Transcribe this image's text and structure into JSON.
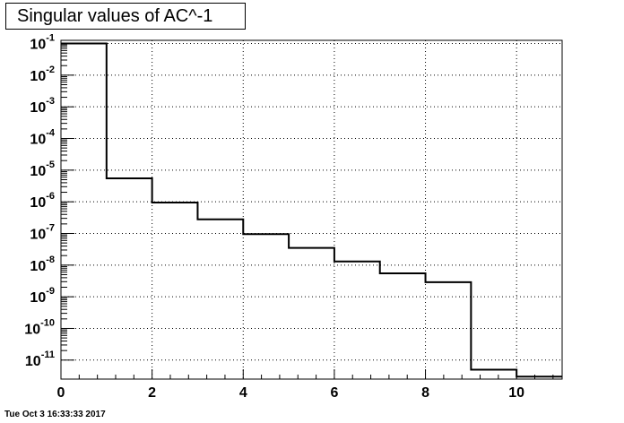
{
  "title": "Singular values of AC^-1",
  "timestamp": "Tue Oct  3 16:33:33 2017",
  "chart_data": {
    "type": "histogram",
    "title": "Singular values of AC^-1",
    "xlabel": "",
    "ylabel": "",
    "xlim": [
      0,
      11
    ],
    "ylim_exponent": [
      -11.6,
      -0.9
    ],
    "yscale": "log",
    "grid": true,
    "x_ticks": [
      {
        "value": 0,
        "label": "0"
      },
      {
        "value": 2,
        "label": "2"
      },
      {
        "value": 4,
        "label": "4"
      },
      {
        "value": 6,
        "label": "6"
      },
      {
        "value": 8,
        "label": "8"
      },
      {
        "value": 10,
        "label": "10"
      }
    ],
    "y_ticks": [
      {
        "exponent": -1,
        "label": "-1"
      },
      {
        "exponent": -2,
        "label": "-2"
      },
      {
        "exponent": -3,
        "label": "-3"
      },
      {
        "exponent": -4,
        "label": "-4"
      },
      {
        "exponent": -5,
        "label": "-5"
      },
      {
        "exponent": -6,
        "label": "-6"
      },
      {
        "exponent": -7,
        "label": "-7"
      },
      {
        "exponent": -8,
        "label": "-8"
      },
      {
        "exponent": -9,
        "label": "-9"
      },
      {
        "exponent": -10,
        "label": "-10"
      },
      {
        "exponent": -11,
        "label": "-11"
      }
    ],
    "bins": [
      {
        "x0": 0,
        "x1": 1,
        "value": 0.1
      },
      {
        "x0": 1,
        "x1": 2,
        "value": 5.5e-06
      },
      {
        "x0": 2,
        "x1": 3,
        "value": 9.5e-07
      },
      {
        "x0": 3,
        "x1": 4,
        "value": 2.8e-07
      },
      {
        "x0": 4,
        "x1": 5,
        "value": 9.5e-08
      },
      {
        "x0": 5,
        "x1": 6,
        "value": 3.5e-08
      },
      {
        "x0": 6,
        "x1": 7,
        "value": 1.3e-08
      },
      {
        "x0": 7,
        "x1": 8,
        "value": 5.5e-09
      },
      {
        "x0": 8,
        "x1": 9,
        "value": 2.9e-09
      },
      {
        "x0": 9,
        "x1": 10,
        "value": 5e-12
      },
      {
        "x0": 10,
        "x1": 11,
        "value": 3e-12
      }
    ],
    "colors": {
      "line": "#000000",
      "grid": "#000000",
      "background": "#ffffff"
    }
  }
}
